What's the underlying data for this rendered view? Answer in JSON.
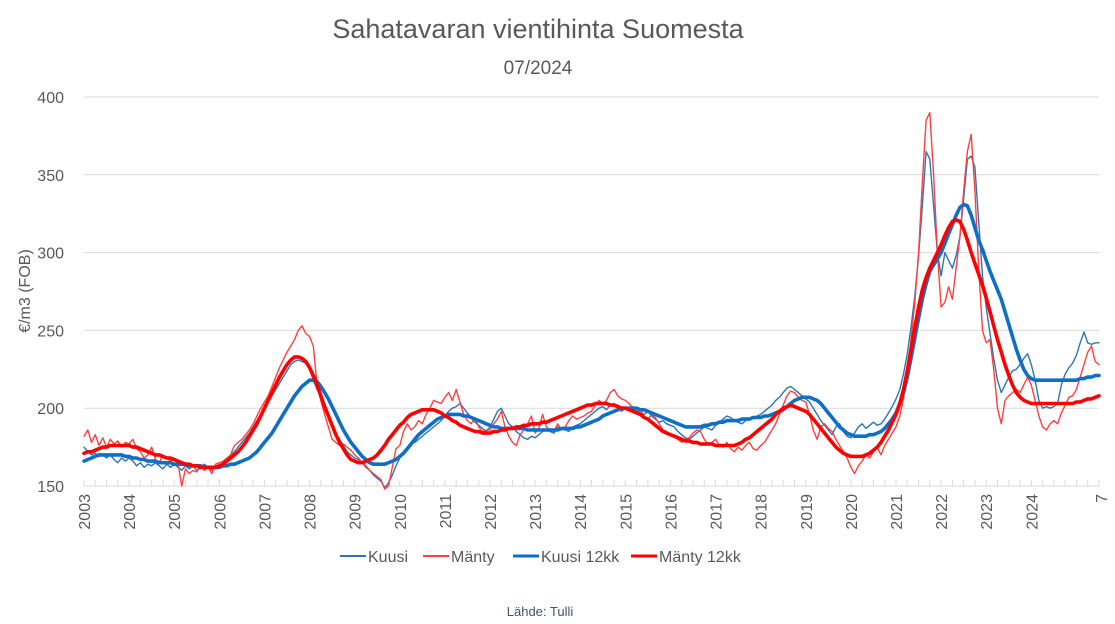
{
  "chart_data": {
    "type": "line",
    "title": "Sahatavaran vientihinta Suomesta",
    "subtitle": "07/2024",
    "xlabel": "",
    "ylabel": "€/m3 (FOB)",
    "ylim": [
      150,
      400
    ],
    "yticks": [
      "150",
      "200",
      "250",
      "300",
      "350",
      "400"
    ],
    "ytick_values": [
      150,
      200,
      250,
      300,
      350,
      400
    ],
    "grid": true,
    "x_start": "2003-01",
    "x_end": "2024-07",
    "x_frequency": "monthly",
    "xticks": [
      "2003",
      "2004",
      "2005",
      "2006",
      "2007",
      "2008",
      "2009",
      "2010",
      "2011",
      "2012",
      "2013",
      "2014",
      "2015",
      "2016",
      "2017",
      "2018",
      "2019",
      "2020",
      "2021",
      "2022",
      "2023",
      "2024",
      "7"
    ],
    "legend_position": "bottom",
    "series": [
      {
        "name": "Kuusi",
        "color": "#2e75b6",
        "values": [
          175,
          172,
          170,
          171,
          169,
          170,
          168,
          170,
          167,
          165,
          168,
          166,
          168,
          166,
          163,
          165,
          162,
          164,
          163,
          165,
          163,
          161,
          164,
          162,
          164,
          162,
          160,
          163,
          161,
          163,
          160,
          162,
          164,
          162,
          160,
          163,
          163,
          165,
          167,
          170,
          172,
          175,
          178,
          181,
          184,
          188,
          192,
          196,
          200,
          204,
          208,
          212,
          216,
          220,
          224,
          228,
          230,
          231,
          230,
          229,
          225,
          218,
          212,
          208,
          203,
          197,
          190,
          184,
          180,
          176,
          172,
          170,
          168,
          167,
          165,
          162,
          160,
          157,
          155,
          153,
          149,
          152,
          157,
          163,
          168,
          172,
          175,
          177,
          178,
          180,
          182,
          184,
          186,
          188,
          190,
          192,
          195,
          198,
          200,
          201,
          203,
          200,
          197,
          194,
          191,
          189,
          187,
          185,
          188,
          193,
          198,
          200,
          195,
          190,
          188,
          185,
          183,
          181,
          180,
          182,
          181,
          183,
          185,
          186,
          185,
          184,
          188,
          187,
          186,
          185,
          188,
          189,
          190,
          192,
          194,
          196,
          198,
          200,
          201,
          199,
          202,
          203,
          200,
          198,
          200,
          199,
          201,
          198,
          197,
          196,
          198,
          195,
          193,
          191,
          192,
          190,
          189,
          188,
          185,
          183,
          181,
          180,
          182,
          184,
          186,
          188,
          187,
          186,
          189,
          191,
          193,
          195,
          194,
          192,
          191,
          190,
          192,
          193,
          194,
          195,
          196,
          198,
          200,
          202,
          205,
          207,
          210,
          213,
          214,
          212,
          210,
          208,
          206,
          204,
          200,
          196,
          192,
          189,
          186,
          183,
          188,
          190,
          185,
          182,
          181,
          184,
          188,
          190,
          187,
          189,
          191,
          189,
          190,
          193,
          197,
          201,
          206,
          212,
          222,
          235,
          252,
          272,
          298,
          330,
          365,
          360,
          330,
          300,
          285,
          300,
          295,
          290,
          298,
          310,
          335,
          360,
          362,
          355,
          320,
          285,
          265,
          248,
          232,
          218,
          210,
          215,
          220,
          224,
          225,
          228,
          232,
          235,
          228,
          218,
          205,
          200,
          201,
          200,
          201,
          203,
          215,
          222,
          226,
          229,
          234,
          242,
          249,
          242,
          241,
          242,
          242
        ]
      },
      {
        "name": "Mänty",
        "color": "#ff3f3f",
        "values": [
          182,
          186,
          178,
          183,
          176,
          181,
          175,
          180,
          177,
          179,
          175,
          178,
          177,
          180,
          174,
          172,
          168,
          170,
          175,
          167,
          165,
          170,
          168,
          166,
          167,
          165,
          150,
          161,
          158,
          160,
          159,
          163,
          160,
          162,
          158,
          164,
          165,
          166,
          168,
          170,
          176,
          178,
          180,
          183,
          186,
          190,
          195,
          200,
          204,
          208,
          214,
          220,
          226,
          231,
          236,
          240,
          244,
          250,
          253,
          248,
          246,
          240,
          215,
          205,
          196,
          188,
          180,
          178,
          176,
          177,
          175,
          173,
          170,
          168,
          165,
          163,
          160,
          158,
          156,
          154,
          148,
          150,
          162,
          174,
          176,
          185,
          190,
          186,
          188,
          192,
          190,
          196,
          200,
          205,
          204,
          203,
          207,
          210,
          205,
          212,
          204,
          196,
          192,
          190,
          194,
          188,
          185,
          186,
          186,
          190,
          193,
          198,
          188,
          182,
          178,
          176,
          183,
          186,
          190,
          195,
          184,
          187,
          196,
          188,
          186,
          185,
          190,
          186,
          188,
          192,
          195,
          193,
          194,
          195,
          197,
          198,
          202,
          205,
          203,
          205,
          210,
          212,
          208,
          206,
          205,
          203,
          200,
          197,
          199,
          195,
          193,
          196,
          194,
          190,
          186,
          185,
          183,
          182,
          180,
          178,
          180,
          181,
          184,
          186,
          185,
          180,
          177,
          178,
          180,
          176,
          175,
          178,
          174,
          172,
          175,
          173,
          176,
          178,
          174,
          173,
          176,
          178,
          182,
          186,
          190,
          196,
          202,
          208,
          211,
          210,
          207,
          205,
          204,
          196,
          186,
          180,
          188,
          190,
          187,
          185,
          180,
          176,
          172,
          168,
          162,
          158,
          163,
          166,
          170,
          168,
          172,
          175,
          170,
          176,
          180,
          184,
          188,
          195,
          206,
          222,
          244,
          268,
          300,
          345,
          385,
          390,
          350,
          300,
          265,
          268,
          278,
          270,
          290,
          310,
          340,
          365,
          376,
          340,
          290,
          250,
          242,
          244,
          225,
          200,
          190,
          205,
          208,
          210,
          212,
          210,
          215,
          220,
          215,
          205,
          195,
          188,
          186,
          190,
          192,
          190,
          197,
          202,
          207,
          208,
          212,
          220,
          228,
          236,
          240,
          230,
          228
        ]
      },
      {
        "name": "Kuusi 12kk",
        "color": "#0f6fc6",
        "values": [
          166,
          167,
          168,
          169,
          170,
          170,
          170,
          170,
          170,
          170,
          170,
          169,
          169,
          168,
          168,
          167,
          167,
          166,
          166,
          166,
          165,
          165,
          165,
          165,
          164,
          164,
          164,
          164,
          163,
          163,
          163,
          163,
          162,
          162,
          162,
          162,
          162,
          163,
          163,
          164,
          164,
          165,
          166,
          167,
          168,
          170,
          172,
          175,
          178,
          181,
          184,
          188,
          192,
          196,
          200,
          204,
          208,
          211,
          214,
          216,
          218,
          218,
          217,
          214,
          210,
          206,
          201,
          196,
          191,
          186,
          182,
          178,
          175,
          172,
          169,
          167,
          165,
          164,
          164,
          164,
          164,
          165,
          166,
          167,
          169,
          171,
          174,
          177,
          180,
          183,
          185,
          187,
          189,
          191,
          193,
          194,
          195,
          196,
          196,
          196,
          196,
          195,
          195,
          194,
          193,
          192,
          191,
          190,
          189,
          188,
          188,
          187,
          187,
          187,
          187,
          187,
          187,
          187,
          186,
          186,
          186,
          186,
          186,
          186,
          186,
          186,
          186,
          187,
          187,
          187,
          187,
          188,
          188,
          189,
          190,
          191,
          192,
          193,
          195,
          196,
          197,
          198,
          199,
          200,
          200,
          200,
          200,
          200,
          199,
          199,
          198,
          197,
          196,
          195,
          194,
          193,
          192,
          191,
          190,
          189,
          188,
          188,
          188,
          188,
          188,
          189,
          189,
          190,
          190,
          191,
          191,
          192,
          192,
          192,
          192,
          193,
          193,
          193,
          194,
          194,
          194,
          195,
          195,
          196,
          197,
          198,
          199,
          201,
          203,
          205,
          206,
          207,
          207,
          207,
          206,
          205,
          203,
          200,
          197,
          194,
          191,
          188,
          186,
          184,
          183,
          182,
          182,
          182,
          182,
          183,
          183,
          184,
          185,
          187,
          190,
          193,
          197,
          203,
          210,
          220,
          232,
          245,
          258,
          270,
          280,
          288,
          292,
          296,
          300,
          306,
          312,
          318,
          324,
          329,
          331,
          330,
          324,
          316,
          308,
          302,
          295,
          288,
          282,
          276,
          270,
          262,
          254,
          246,
          238,
          231,
          225,
          221,
          219,
          218,
          218,
          218,
          218,
          218,
          218,
          218,
          218,
          218,
          218,
          218,
          218,
          219,
          219,
          220,
          220,
          221,
          221
        ]
      },
      {
        "name": "Mänty 12kk",
        "color": "#ff0000",
        "values": [
          171,
          172,
          172,
          173,
          174,
          175,
          175,
          176,
          176,
          176,
          176,
          176,
          176,
          175,
          175,
          174,
          173,
          172,
          171,
          170,
          170,
          169,
          168,
          168,
          167,
          166,
          165,
          164,
          164,
          163,
          163,
          162,
          162,
          162,
          162,
          162,
          163,
          164,
          166,
          168,
          170,
          172,
          175,
          178,
          182,
          186,
          190,
          195,
          200,
          205,
          210,
          215,
          220,
          224,
          228,
          231,
          233,
          233,
          232,
          230,
          226,
          221,
          215,
          208,
          201,
          195,
          189,
          183,
          178,
          174,
          170,
          167,
          166,
          165,
          165,
          166,
          167,
          168,
          170,
          173,
          176,
          180,
          183,
          186,
          189,
          191,
          194,
          196,
          197,
          198,
          199,
          199,
          199,
          199,
          198,
          197,
          195,
          194,
          192,
          191,
          189,
          188,
          187,
          186,
          185,
          185,
          184,
          184,
          184,
          185,
          185,
          186,
          186,
          187,
          187,
          188,
          188,
          189,
          189,
          190,
          190,
          190,
          191,
          191,
          192,
          193,
          194,
          195,
          196,
          197,
          198,
          199,
          200,
          201,
          202,
          202,
          203,
          203,
          203,
          203,
          202,
          202,
          201,
          200,
          200,
          199,
          198,
          197,
          196,
          194,
          193,
          191,
          189,
          187,
          185,
          184,
          183,
          182,
          181,
          180,
          179,
          179,
          178,
          178,
          177,
          177,
          177,
          177,
          176,
          176,
          176,
          176,
          176,
          176,
          177,
          178,
          180,
          181,
          183,
          185,
          187,
          189,
          191,
          193,
          196,
          198,
          200,
          201,
          202,
          201,
          200,
          199,
          198,
          196,
          193,
          190,
          187,
          184,
          181,
          178,
          175,
          173,
          171,
          170,
          169,
          169,
          169,
          169,
          170,
          171,
          173,
          175,
          178,
          182,
          186,
          191,
          196,
          203,
          212,
          224,
          238,
          252,
          265,
          276,
          284,
          290,
          295,
          300,
          305,
          311,
          316,
          320,
          321,
          320,
          315,
          308,
          300,
          293,
          286,
          279,
          271,
          262,
          253,
          244,
          236,
          228,
          221,
          215,
          210,
          207,
          205,
          204,
          203,
          203,
          203,
          203,
          203,
          203,
          203,
          203,
          203,
          203,
          203,
          203,
          204,
          204,
          205,
          206,
          206,
          207,
          208
        ]
      }
    ]
  },
  "footer": {
    "source": "Lähde: Tulli"
  }
}
